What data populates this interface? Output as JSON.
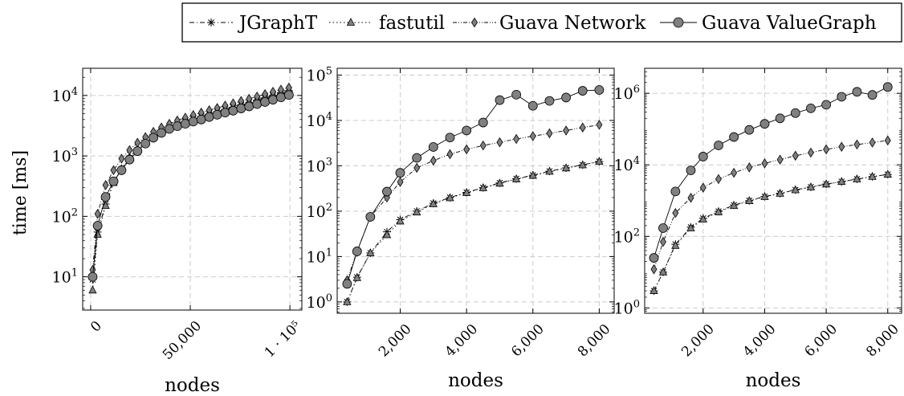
{
  "legend": {
    "position": "top",
    "entries": [
      {
        "name": "JGraphT",
        "marker": "star",
        "dash": "dashdot"
      },
      {
        "name": "fastutil",
        "marker": "triangle",
        "dash": "dotted"
      },
      {
        "name": "Guava Network",
        "marker": "diamond",
        "dash": "dashdotdot"
      },
      {
        "name": "Guava ValueGraph",
        "marker": "circle",
        "dash": "solid"
      }
    ]
  },
  "ylabel_shared": "time [ms]",
  "colors": {
    "marker_fill": "#808080",
    "stroke": "#000000",
    "grid": "#cccccc"
  },
  "chart_data": [
    {
      "type": "line",
      "xlabel": "nodes",
      "ylabel": "time [ms]",
      "log_y": true,
      "grid": true,
      "xlim": [
        -4000,
        106000
      ],
      "ylim_log10": [
        0.45,
        4.45
      ],
      "x_ticks": [
        {
          "v": 0,
          "label": "0"
        },
        {
          "v": 50000,
          "label": "50,000"
        },
        {
          "v": 100000,
          "label": "1 · 10⁵"
        }
      ],
      "y_ticks": [
        {
          "v": 1,
          "base": "10",
          "exp": "1"
        },
        {
          "v": 2,
          "base": "10",
          "exp": "2"
        },
        {
          "v": 3,
          "base": "10",
          "exp": "3"
        },
        {
          "v": 4,
          "base": "10",
          "exp": "4"
        }
      ],
      "x": [
        1000,
        3500,
        7500,
        11500,
        15500,
        19500,
        23500,
        27500,
        31500,
        35500,
        39500,
        43500,
        47500,
        51500,
        55500,
        59500,
        63500,
        67500,
        71500,
        75500,
        79500,
        83500,
        87500,
        91500,
        95500,
        99500
      ],
      "series": [
        {
          "name": "JGraphT",
          "values": [
            9,
            55,
            160,
            370,
            600,
            920,
            1250,
            1650,
            2050,
            2500,
            2900,
            3300,
            3700,
            4100,
            4500,
            4900,
            5400,
            5900,
            6400,
            7000,
            7600,
            8300,
            9100,
            10000,
            11000,
            12000
          ]
        },
        {
          "name": "fastutil",
          "values": [
            6,
            50,
            150,
            360,
            610,
            950,
            1300,
            1700,
            2100,
            2550,
            3000,
            3400,
            3800,
            4200,
            4600,
            5000,
            5500,
            6000,
            6600,
            7200,
            7900,
            8700,
            9600,
            10500,
            11500,
            12500
          ]
        },
        {
          "name": "Guava Network",
          "values": [
            13,
            110,
            330,
            580,
            900,
            1250,
            1650,
            2050,
            2500,
            2950,
            3400,
            3850,
            4300,
            4750,
            5200,
            5700,
            6200,
            6800,
            7400,
            8100,
            8800,
            9600,
            10500,
            11500,
            12500,
            13500
          ]
        },
        {
          "name": "Guava ValueGraph",
          "values": [
            10,
            70,
            210,
            380,
            580,
            870,
            1200,
            1600,
            2000,
            2400,
            2800,
            3100,
            3400,
            3700,
            4000,
            4400,
            4800,
            5200,
            5600,
            6100,
            6600,
            7200,
            7800,
            8500,
            9300,
            10200
          ]
        }
      ]
    },
    {
      "type": "line",
      "xlabel": "nodes",
      "log_y": true,
      "grid": true,
      "xlim": [
        100,
        8450
      ],
      "ylim_log10": [
        -0.25,
        5.15
      ],
      "x_ticks": [
        {
          "v": 2000,
          "label": "2,000"
        },
        {
          "v": 4000,
          "label": "4,000"
        },
        {
          "v": 6000,
          "label": "6,000"
        },
        {
          "v": 8000,
          "label": "8,000"
        }
      ],
      "y_ticks": [
        {
          "v": 0,
          "base": "10",
          "exp": "0"
        },
        {
          "v": 1,
          "base": "10",
          "exp": "1"
        },
        {
          "v": 2,
          "base": "10",
          "exp": "2"
        },
        {
          "v": 3,
          "base": "10",
          "exp": "3"
        },
        {
          "v": 4,
          "base": "10",
          "exp": "4"
        },
        {
          "v": 5,
          "base": "10",
          "exp": "5"
        }
      ],
      "x": [
        400,
        700,
        1100,
        1600,
        2000,
        2500,
        3000,
        3500,
        4000,
        4500,
        5000,
        5500,
        6000,
        6500,
        7000,
        7500,
        8000
      ],
      "series": [
        {
          "name": "JGraphT",
          "values": [
            1.0,
            3.5,
            12,
            35,
            65,
            100,
            150,
            200,
            260,
            330,
            420,
            520,
            620,
            760,
            900,
            1050,
            1250
          ]
        },
        {
          "name": "fastutil",
          "values": [
            1.0,
            3.4,
            12,
            30,
            60,
            95,
            145,
            195,
            255,
            325,
            410,
            510,
            610,
            750,
            890,
            1040,
            1240
          ]
        },
        {
          "name": "Guava Network",
          "values": [
            3,
            13,
            75,
            200,
            440,
            900,
            1300,
            1800,
            2300,
            2800,
            3300,
            3900,
            4500,
            5200,
            6000,
            7000,
            8000
          ]
        },
        {
          "name": "Guava ValueGraph",
          "values": [
            2.5,
            13,
            75,
            270,
            700,
            1500,
            2600,
            4200,
            6000,
            9000,
            28000,
            37000,
            21000,
            27000,
            32000,
            45000,
            47000
          ]
        }
      ]
    },
    {
      "type": "line",
      "xlabel": "nodes",
      "log_y": true,
      "grid": true,
      "xlim": [
        100,
        8450
      ],
      "ylim_log10": [
        -0.15,
        6.7
      ],
      "y_ticks": [
        {
          "v": 0,
          "base": "10",
          "exp": "0"
        },
        {
          "v": 2,
          "base": "10",
          "exp": "2"
        },
        {
          "v": 4,
          "base": "10",
          "exp": "4"
        },
        {
          "v": 6,
          "base": "10",
          "exp": "6"
        }
      ],
      "x_ticks": [
        {
          "v": 2000,
          "label": "2,000"
        },
        {
          "v": 4000,
          "label": "4,000"
        },
        {
          "v": 6000,
          "label": "6,000"
        },
        {
          "v": 8000,
          "label": "8,000"
        }
      ],
      "x": [
        400,
        700,
        1100,
        1600,
        2000,
        2500,
        3000,
        3500,
        4000,
        4500,
        5000,
        5500,
        6000,
        6500,
        7000,
        7500,
        8000
      ],
      "series": [
        {
          "name": "JGraphT",
          "values": [
            3,
            10,
            60,
            180,
            320,
            500,
            750,
            1000,
            1300,
            1600,
            2000,
            2400,
            2900,
            3400,
            4000,
            4700,
            5400
          ]
        },
        {
          "name": "fastutil",
          "values": [
            3,
            10,
            55,
            170,
            300,
            480,
            720,
            980,
            1280,
            1580,
            1980,
            2380,
            2880,
            3380,
            3980,
            4680,
            5380
          ]
        },
        {
          "name": "Guava Network",
          "values": [
            12,
            70,
            450,
            1200,
            2300,
            4000,
            6000,
            8500,
            11000,
            14000,
            18000,
            22000,
            27000,
            32000,
            37000,
            42000,
            48000
          ]
        },
        {
          "name": "Guava ValueGraph",
          "values": [
            25,
            170,
            1800,
            7000,
            17000,
            35000,
            60000,
            95000,
            140000,
            200000,
            280000,
            380000,
            480000,
            800000,
            1100000,
            900000,
            1500000
          ]
        }
      ]
    }
  ]
}
